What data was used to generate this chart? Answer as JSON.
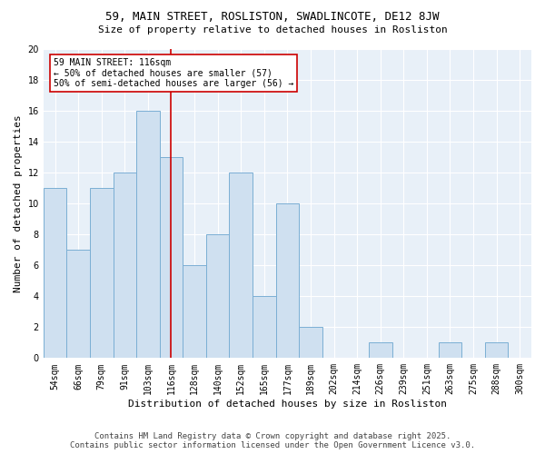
{
  "title1": "59, MAIN STREET, ROSLISTON, SWADLINCOTE, DE12 8JW",
  "title2": "Size of property relative to detached houses in Rosliston",
  "xlabel": "Distribution of detached houses by size in Rosliston",
  "ylabel": "Number of detached properties",
  "categories": [
    "54sqm",
    "66sqm",
    "79sqm",
    "91sqm",
    "103sqm",
    "116sqm",
    "128sqm",
    "140sqm",
    "152sqm",
    "165sqm",
    "177sqm",
    "189sqm",
    "202sqm",
    "214sqm",
    "226sqm",
    "239sqm",
    "251sqm",
    "263sqm",
    "275sqm",
    "288sqm",
    "300sqm"
  ],
  "values": [
    11,
    7,
    11,
    12,
    16,
    13,
    6,
    8,
    12,
    4,
    10,
    2,
    0,
    0,
    1,
    0,
    0,
    1,
    0,
    1,
    0
  ],
  "bar_color": "#cfe0f0",
  "bar_edge_color": "#7bafd4",
  "vline_color": "#cc0000",
  "vline_x": 5,
  "annotation_text": "59 MAIN STREET: 116sqm\n← 50% of detached houses are smaller (57)\n50% of semi-detached houses are larger (56) →",
  "annotation_box_facecolor": "#ffffff",
  "annotation_box_edgecolor": "#cc0000",
  "ylim": [
    0,
    20
  ],
  "yticks": [
    0,
    2,
    4,
    6,
    8,
    10,
    12,
    14,
    16,
    18,
    20
  ],
  "fig_bg_color": "#ffffff",
  "ax_bg_color": "#e8f0f8",
  "grid_color": "#ffffff",
  "footer_line1": "Contains HM Land Registry data © Crown copyright and database right 2025.",
  "footer_line2": "Contains public sector information licensed under the Open Government Licence v3.0.",
  "title1_fontsize": 9,
  "title2_fontsize": 8,
  "ylabel_text": "Number of detached properties",
  "tick_fontsize": 7,
  "ylabel_fontsize": 8,
  "xlabel_fontsize": 8,
  "footer_fontsize": 6.5
}
